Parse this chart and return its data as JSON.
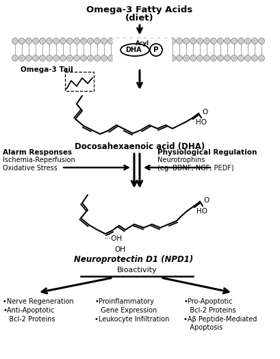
{
  "title_line1": "Omega-3 Fatty Acids",
  "title_line2": "(diet)",
  "membrane_label_acyl": "Acyl",
  "membrane_label_dha": "DHA",
  "membrane_label_p": "P",
  "omega3_tail_label": "Omega-3 Tail",
  "dha_label": "Docosahexaenoic acid (DHA)",
  "alarm_title": "Alarm Responses",
  "alarm_body": "Ischemia-Reperfusion\nOxidative Stress",
  "physio_title": "Physiological Regulation",
  "physio_body": "Neurotrophins\n(eg. BDNF, NGF, PEDF)",
  "npd1_label": "Neuroprotectin D1 (NPD1)",
  "bioactivity_label": "Bioactivity",
  "left_col": "•Nerve Regeneration\n•Anti-Apoptotic\n   Bcl-2 Proteins",
  "mid_col": "•Proinflammatory\n   Gene Expression\n•Leukocyte Infiltration",
  "right_col": "•Pro-Apoptotic\n   Bcl-2 Proteins\n•Aβ Peptide-Mediated\n   Apoptosis",
  "bg_color": "#ffffff",
  "text_color": "#000000"
}
